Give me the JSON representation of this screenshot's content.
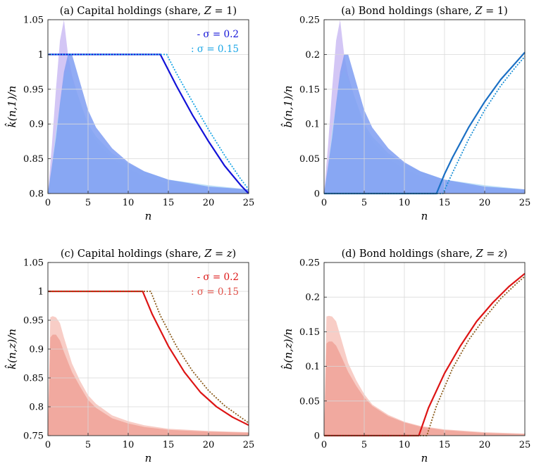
{
  "chart_data": [
    {
      "type": "line",
      "title": "(a) Capital holdings (share, Z = 1)",
      "title_parts": [
        "(a) Capital holdings (share, ",
        "Z",
        " = 1)"
      ],
      "xlabel": "n",
      "ylabel": "k̂(n,1)/n",
      "xlim": [
        0,
        25
      ],
      "ylim": [
        0.8,
        1.05
      ],
      "xticks": [
        0,
        5,
        10,
        15,
        20,
        25
      ],
      "yticks": [
        0.8,
        0.85,
        0.9,
        0.95,
        1,
        1.05
      ],
      "xtick_labels": [
        "0",
        "5",
        "10",
        "15",
        "20",
        "25"
      ],
      "ytick_labels": [
        "0.8",
        "0.85",
        "0.9",
        "0.95",
        "1",
        "1.05"
      ],
      "grid": true,
      "legend_position": "top-right",
      "colors": {
        "main": "#1212d8",
        "dotted": "#1aa6e6",
        "area_front": "#7f9ef2",
        "area_back": "#c8b8f2",
        "area_light": "#b6ddf6"
      },
      "series": [
        {
          "name": "σ = 0.2",
          "legend_label": "- σ = 0.2",
          "style": "solid",
          "x": [
            0,
            5,
            10,
            14,
            16,
            18,
            20,
            22,
            24,
            25
          ],
          "values": [
            1,
            1,
            1,
            1,
            0.955,
            0.913,
            0.875,
            0.84,
            0.812,
            0.8
          ]
        },
        {
          "name": "σ = 0.15",
          "legend_label": ": σ = 0.15",
          "style": "dotted",
          "x": [
            0,
            5,
            10,
            14.8,
            16,
            18,
            20,
            22,
            24,
            25
          ],
          "values": [
            1,
            1,
            1,
            1,
            0.973,
            0.932,
            0.892,
            0.855,
            0.821,
            0.806
          ]
        }
      ],
      "distributions": [
        {
          "x": [
            0,
            0.5,
            1,
            1.5,
            2,
            2.5,
            3,
            4,
            5,
            6,
            8,
            10,
            12,
            15,
            20,
            25
          ],
          "values": [
            0.8,
            0.87,
            0.95,
            1.02,
            1.05,
            1.0,
            0.97,
            0.93,
            0.895,
            0.875,
            0.85,
            0.835,
            0.825,
            0.815,
            0.808,
            0.804
          ]
        },
        {
          "x": [
            0,
            0.5,
            1,
            2,
            2.5,
            3,
            4,
            5,
            6,
            8,
            10,
            12,
            15,
            20,
            25
          ],
          "values": [
            0.8,
            0.84,
            0.89,
            0.965,
            0.98,
            0.965,
            0.933,
            0.9,
            0.882,
            0.858,
            0.843,
            0.832,
            0.82,
            0.812,
            0.806
          ]
        },
        {
          "x": [
            0,
            0.5,
            1,
            1.5,
            2,
            2.5,
            3,
            4,
            5,
            6,
            8,
            10,
            12,
            15,
            20,
            25
          ],
          "values": [
            0.8,
            0.84,
            0.88,
            0.93,
            0.975,
            1.0,
            1.0,
            0.96,
            0.92,
            0.895,
            0.865,
            0.845,
            0.832,
            0.82,
            0.81,
            0.806
          ]
        }
      ]
    },
    {
      "type": "line",
      "title": "(a) Bond holdings (share, Z = 1)",
      "title_parts": [
        "(a) Bond holdings (share, ",
        "Z",
        " = 1)"
      ],
      "xlabel": "n",
      "ylabel": "b̂(n,1)/n",
      "xlim": [
        0,
        25
      ],
      "ylim": [
        0,
        0.25
      ],
      "xticks": [
        0,
        5,
        10,
        15,
        20,
        25
      ],
      "yticks": [
        0,
        0.05,
        0.1,
        0.15,
        0.2,
        0.25
      ],
      "xtick_labels": [
        "0",
        "5",
        "10",
        "15",
        "20",
        "25"
      ],
      "ytick_labels": [
        "0",
        "0.05",
        "0.1",
        "0.15",
        "0.2",
        "0.25"
      ],
      "grid": true,
      "colors": {
        "main": "#1a6fc4",
        "dotted": "#1a8fd6",
        "area_front": "#7f9ef2",
        "area_back": "#c8b8f2",
        "area_light": "#b6ddf6"
      },
      "series": [
        {
          "style": "solid",
          "x": [
            0,
            5,
            10,
            14,
            15,
            16,
            18,
            20,
            22,
            24,
            25
          ],
          "values": [
            0,
            0,
            0,
            0,
            0.028,
            0.052,
            0.095,
            0.132,
            0.164,
            0.19,
            0.203
          ]
        },
        {
          "style": "dotted",
          "x": [
            0,
            5,
            10,
            14.8,
            16,
            18,
            20,
            22,
            24,
            25
          ],
          "values": [
            0,
            0,
            0,
            0,
            0.03,
            0.078,
            0.12,
            0.155,
            0.184,
            0.197
          ]
        }
      ],
      "distributions": [
        {
          "x": [
            0,
            0.5,
            1,
            1.5,
            2,
            2.5,
            3,
            4,
            5,
            6,
            8,
            10,
            12,
            15,
            20,
            25
          ],
          "values": [
            0,
            0.07,
            0.15,
            0.22,
            0.25,
            0.2,
            0.17,
            0.13,
            0.095,
            0.075,
            0.05,
            0.035,
            0.025,
            0.015,
            0.008,
            0.004
          ]
        },
        {
          "x": [
            0,
            0.5,
            1,
            2,
            2.5,
            3,
            4,
            5,
            6,
            8,
            10,
            12,
            15,
            20,
            25
          ],
          "values": [
            0,
            0.04,
            0.09,
            0.165,
            0.18,
            0.165,
            0.133,
            0.1,
            0.082,
            0.058,
            0.043,
            0.032,
            0.02,
            0.012,
            0.006
          ]
        },
        {
          "x": [
            0,
            0.5,
            1,
            1.5,
            2,
            2.5,
            3,
            4,
            5,
            6,
            8,
            10,
            12,
            15,
            20,
            25
          ],
          "values": [
            0,
            0.04,
            0.08,
            0.13,
            0.175,
            0.2,
            0.2,
            0.16,
            0.12,
            0.095,
            0.065,
            0.045,
            0.032,
            0.02,
            0.01,
            0.006
          ]
        }
      ]
    },
    {
      "type": "line",
      "title": "(c) Capital holdings (share, Z = z)",
      "title_parts": [
        "(c) Capital holdings (share, ",
        "Z",
        " = ",
        "z",
        ")"
      ],
      "xlabel": "n",
      "ylabel": "k̂(n,z)/n",
      "xlim": [
        0,
        25
      ],
      "ylim": [
        0.75,
        1.05
      ],
      "xticks": [
        0,
        5,
        10,
        15,
        20,
        25
      ],
      "yticks": [
        0.75,
        0.8,
        0.85,
        0.9,
        0.95,
        1,
        1.05
      ],
      "xtick_labels": [
        "0",
        "5",
        "10",
        "15",
        "20",
        "25"
      ],
      "ytick_labels": [
        "0.75",
        "0.8",
        "0.85",
        "0.9",
        "0.95",
        "1",
        "1.05"
      ],
      "grid": true,
      "legend_position": "top-right",
      "colors": {
        "main": "#dd1414",
        "dotted": "#8a5a1a",
        "dotted_legend": "#e0524a",
        "area_front": "#f0a59a",
        "area_light": "#f7c8c0"
      },
      "series": [
        {
          "name": "σ = 0.2",
          "legend_label": "- σ = 0.2",
          "style": "solid",
          "x": [
            0,
            5,
            10,
            11.8,
            13,
            15,
            17,
            19,
            21,
            23,
            25
          ],
          "values": [
            1,
            1,
            1,
            1,
            0.96,
            0.905,
            0.86,
            0.825,
            0.8,
            0.782,
            0.768
          ]
        },
        {
          "name": "σ = 0.15",
          "legend_label": ": σ = 0.15",
          "style": "dotted",
          "x": [
            0,
            5,
            10,
            12.8,
            14,
            16,
            18,
            20,
            22,
            24,
            25
          ],
          "values": [
            1,
            1,
            1,
            1,
            0.958,
            0.905,
            0.862,
            0.828,
            0.802,
            0.782,
            0.772
          ]
        }
      ],
      "distributions": [
        {
          "x": [
            0,
            0.3,
            0.6,
            1,
            1.5,
            2,
            3,
            4,
            5,
            6,
            8,
            10,
            12,
            15,
            20,
            25
          ],
          "values": [
            0.75,
            0.955,
            0.957,
            0.955,
            0.945,
            0.92,
            0.875,
            0.845,
            0.82,
            0.805,
            0.785,
            0.775,
            0.768,
            0.762,
            0.758,
            0.756
          ]
        },
        {
          "x": [
            0,
            0.3,
            0.6,
            1,
            1.5,
            2,
            3,
            4,
            5,
            6,
            8,
            10,
            12,
            15,
            20,
            25
          ],
          "values": [
            0.75,
            0.92,
            0.925,
            0.925,
            0.915,
            0.895,
            0.86,
            0.835,
            0.812,
            0.798,
            0.78,
            0.771,
            0.765,
            0.76,
            0.757,
            0.755
          ]
        }
      ]
    },
    {
      "type": "line",
      "title": "(d) Bond holdings (share, Z = z)",
      "title_parts": [
        "(d) Bond holdings (share, ",
        "Z",
        " = ",
        "z",
        ")"
      ],
      "xlabel": "n",
      "ylabel": "b̂(n,z)/n",
      "xlim": [
        0,
        25
      ],
      "ylim": [
        0,
        0.25
      ],
      "xticks": [
        0,
        5,
        10,
        15,
        20,
        25
      ],
      "yticks": [
        0,
        0.05,
        0.1,
        0.15,
        0.2,
        0.25
      ],
      "xtick_labels": [
        "0",
        "5",
        "10",
        "15",
        "20",
        "25"
      ],
      "ytick_labels": [
        "0",
        "0.05",
        "0.1",
        "0.15",
        "0.2",
        "0.25"
      ],
      "grid": true,
      "colors": {
        "main": "#dd1414",
        "dotted": "#8a5a1a",
        "area_front": "#f0a59a",
        "area_light": "#f7c8c0"
      },
      "series": [
        {
          "style": "solid",
          "x": [
            0,
            5,
            10,
            11.8,
            13,
            15,
            17,
            19,
            21,
            23,
            25
          ],
          "values": [
            0,
            0,
            0,
            0,
            0.04,
            0.09,
            0.13,
            0.165,
            0.192,
            0.215,
            0.234
          ]
        },
        {
          "style": "dotted",
          "x": [
            0,
            5,
            10,
            12.8,
            14,
            16,
            18,
            20,
            22,
            24,
            25
          ],
          "values": [
            0,
            0,
            0,
            0,
            0.043,
            0.097,
            0.138,
            0.17,
            0.198,
            0.22,
            0.23
          ]
        }
      ],
      "distributions": [
        {
          "x": [
            0,
            0.3,
            0.6,
            1,
            1.5,
            2,
            3,
            4,
            5,
            6,
            8,
            10,
            12,
            15,
            20,
            25
          ],
          "values": [
            0,
            0.172,
            0.173,
            0.172,
            0.165,
            0.145,
            0.105,
            0.08,
            0.06,
            0.045,
            0.03,
            0.02,
            0.014,
            0.009,
            0.005,
            0.003
          ]
        },
        {
          "x": [
            0,
            0.3,
            0.6,
            1,
            1.5,
            2,
            3,
            4,
            5,
            6,
            8,
            10,
            12,
            15,
            20,
            25
          ],
          "values": [
            0,
            0.133,
            0.136,
            0.136,
            0.13,
            0.118,
            0.092,
            0.072,
            0.055,
            0.043,
            0.028,
            0.019,
            0.013,
            0.008,
            0.004,
            0.002
          ]
        }
      ]
    }
  ]
}
